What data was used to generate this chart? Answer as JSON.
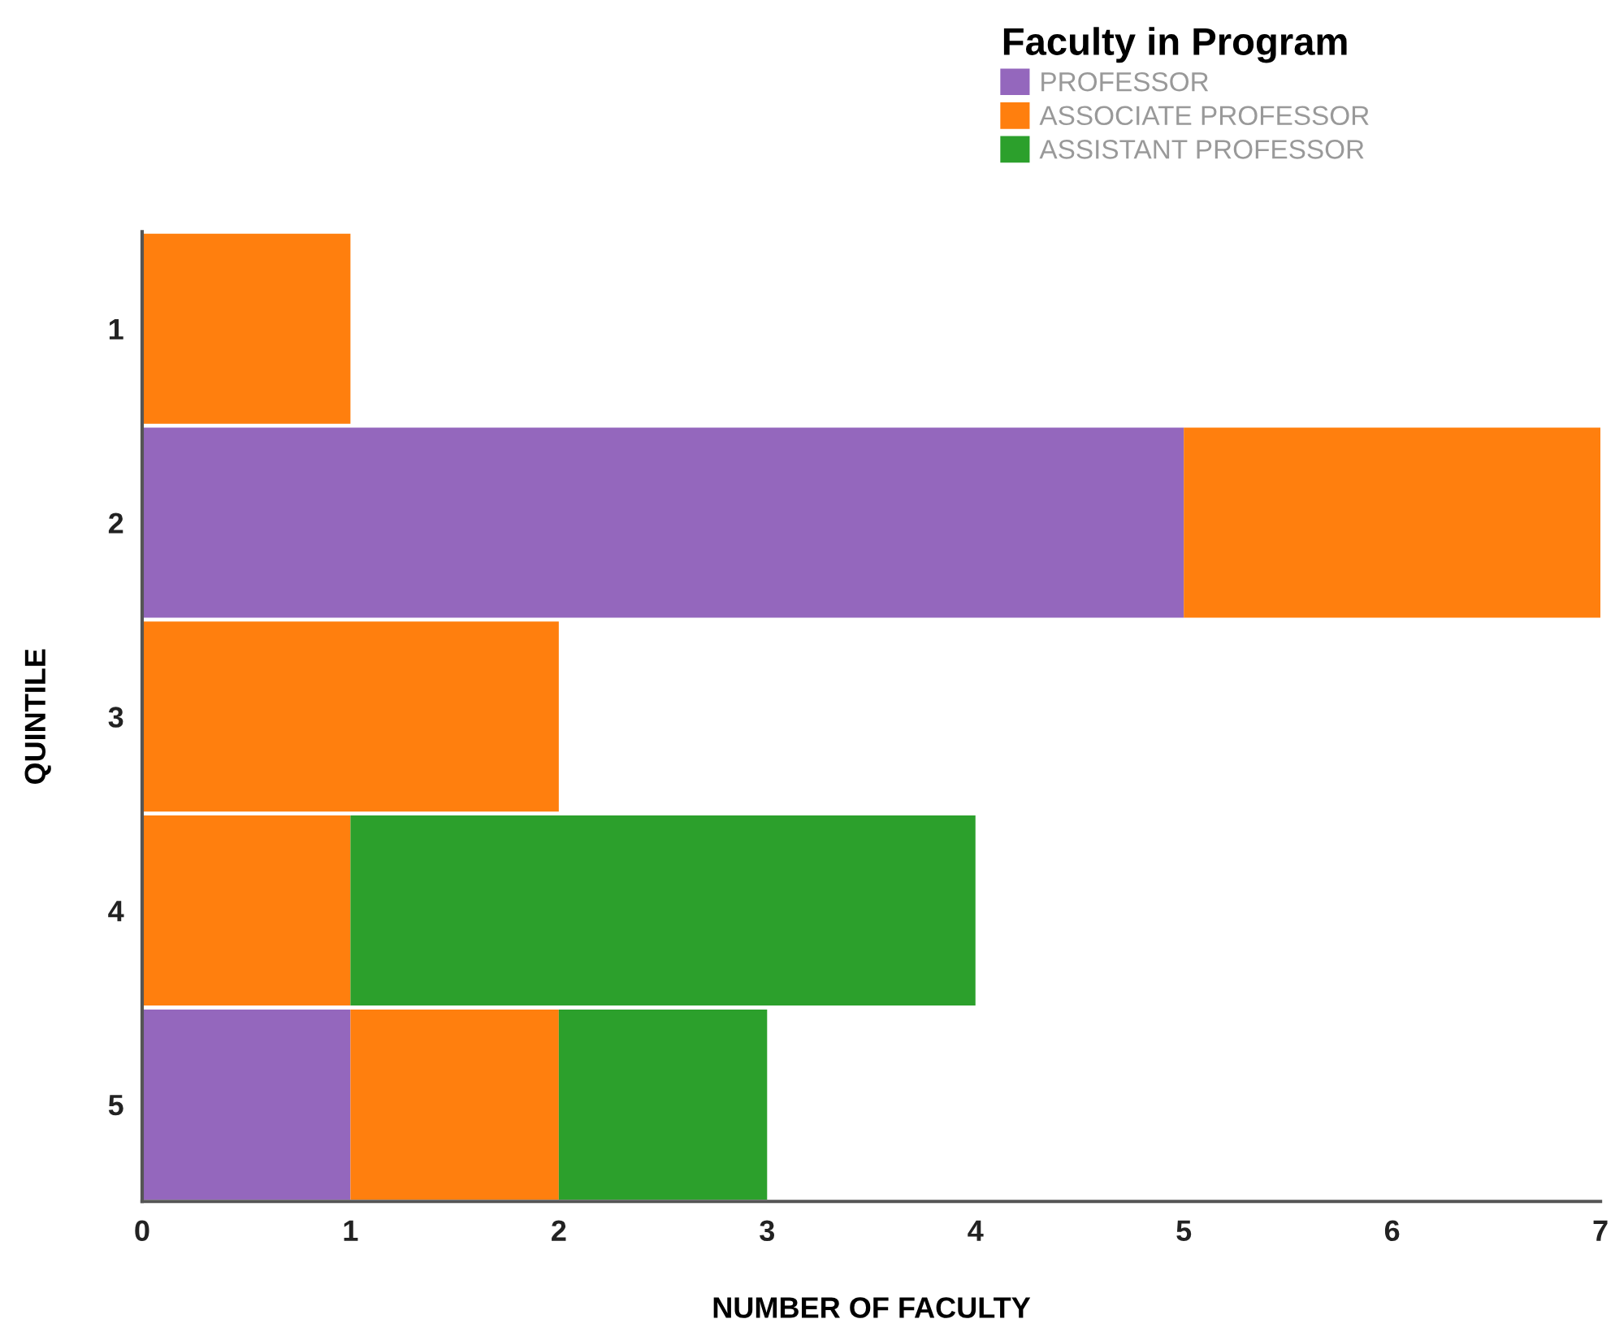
{
  "chart_data": {
    "type": "bar",
    "orientation": "horizontal",
    "stacked": true,
    "categories": [
      "1",
      "2",
      "3",
      "4",
      "5"
    ],
    "series": [
      {
        "name": "PROFESSOR",
        "color": "#9467bd",
        "values": [
          0,
          5,
          0,
          0,
          1
        ]
      },
      {
        "name": "ASSOCIATE PROFESSOR",
        "color": "#ff7f0e",
        "values": [
          1,
          2,
          2,
          1,
          1
        ]
      },
      {
        "name": "ASSISTANT PROFESSOR",
        "color": "#2ca02c",
        "values": [
          0,
          0,
          0,
          3,
          1
        ]
      }
    ],
    "xlim": [
      0,
      7
    ],
    "xticks": [
      0,
      1,
      2,
      3,
      4,
      5,
      6,
      7
    ],
    "xlabel": "NUMBER OF FACULTY",
    "ylabel": "QUINTILE",
    "legend_title": "Faculty in Program",
    "legend": "top right"
  }
}
